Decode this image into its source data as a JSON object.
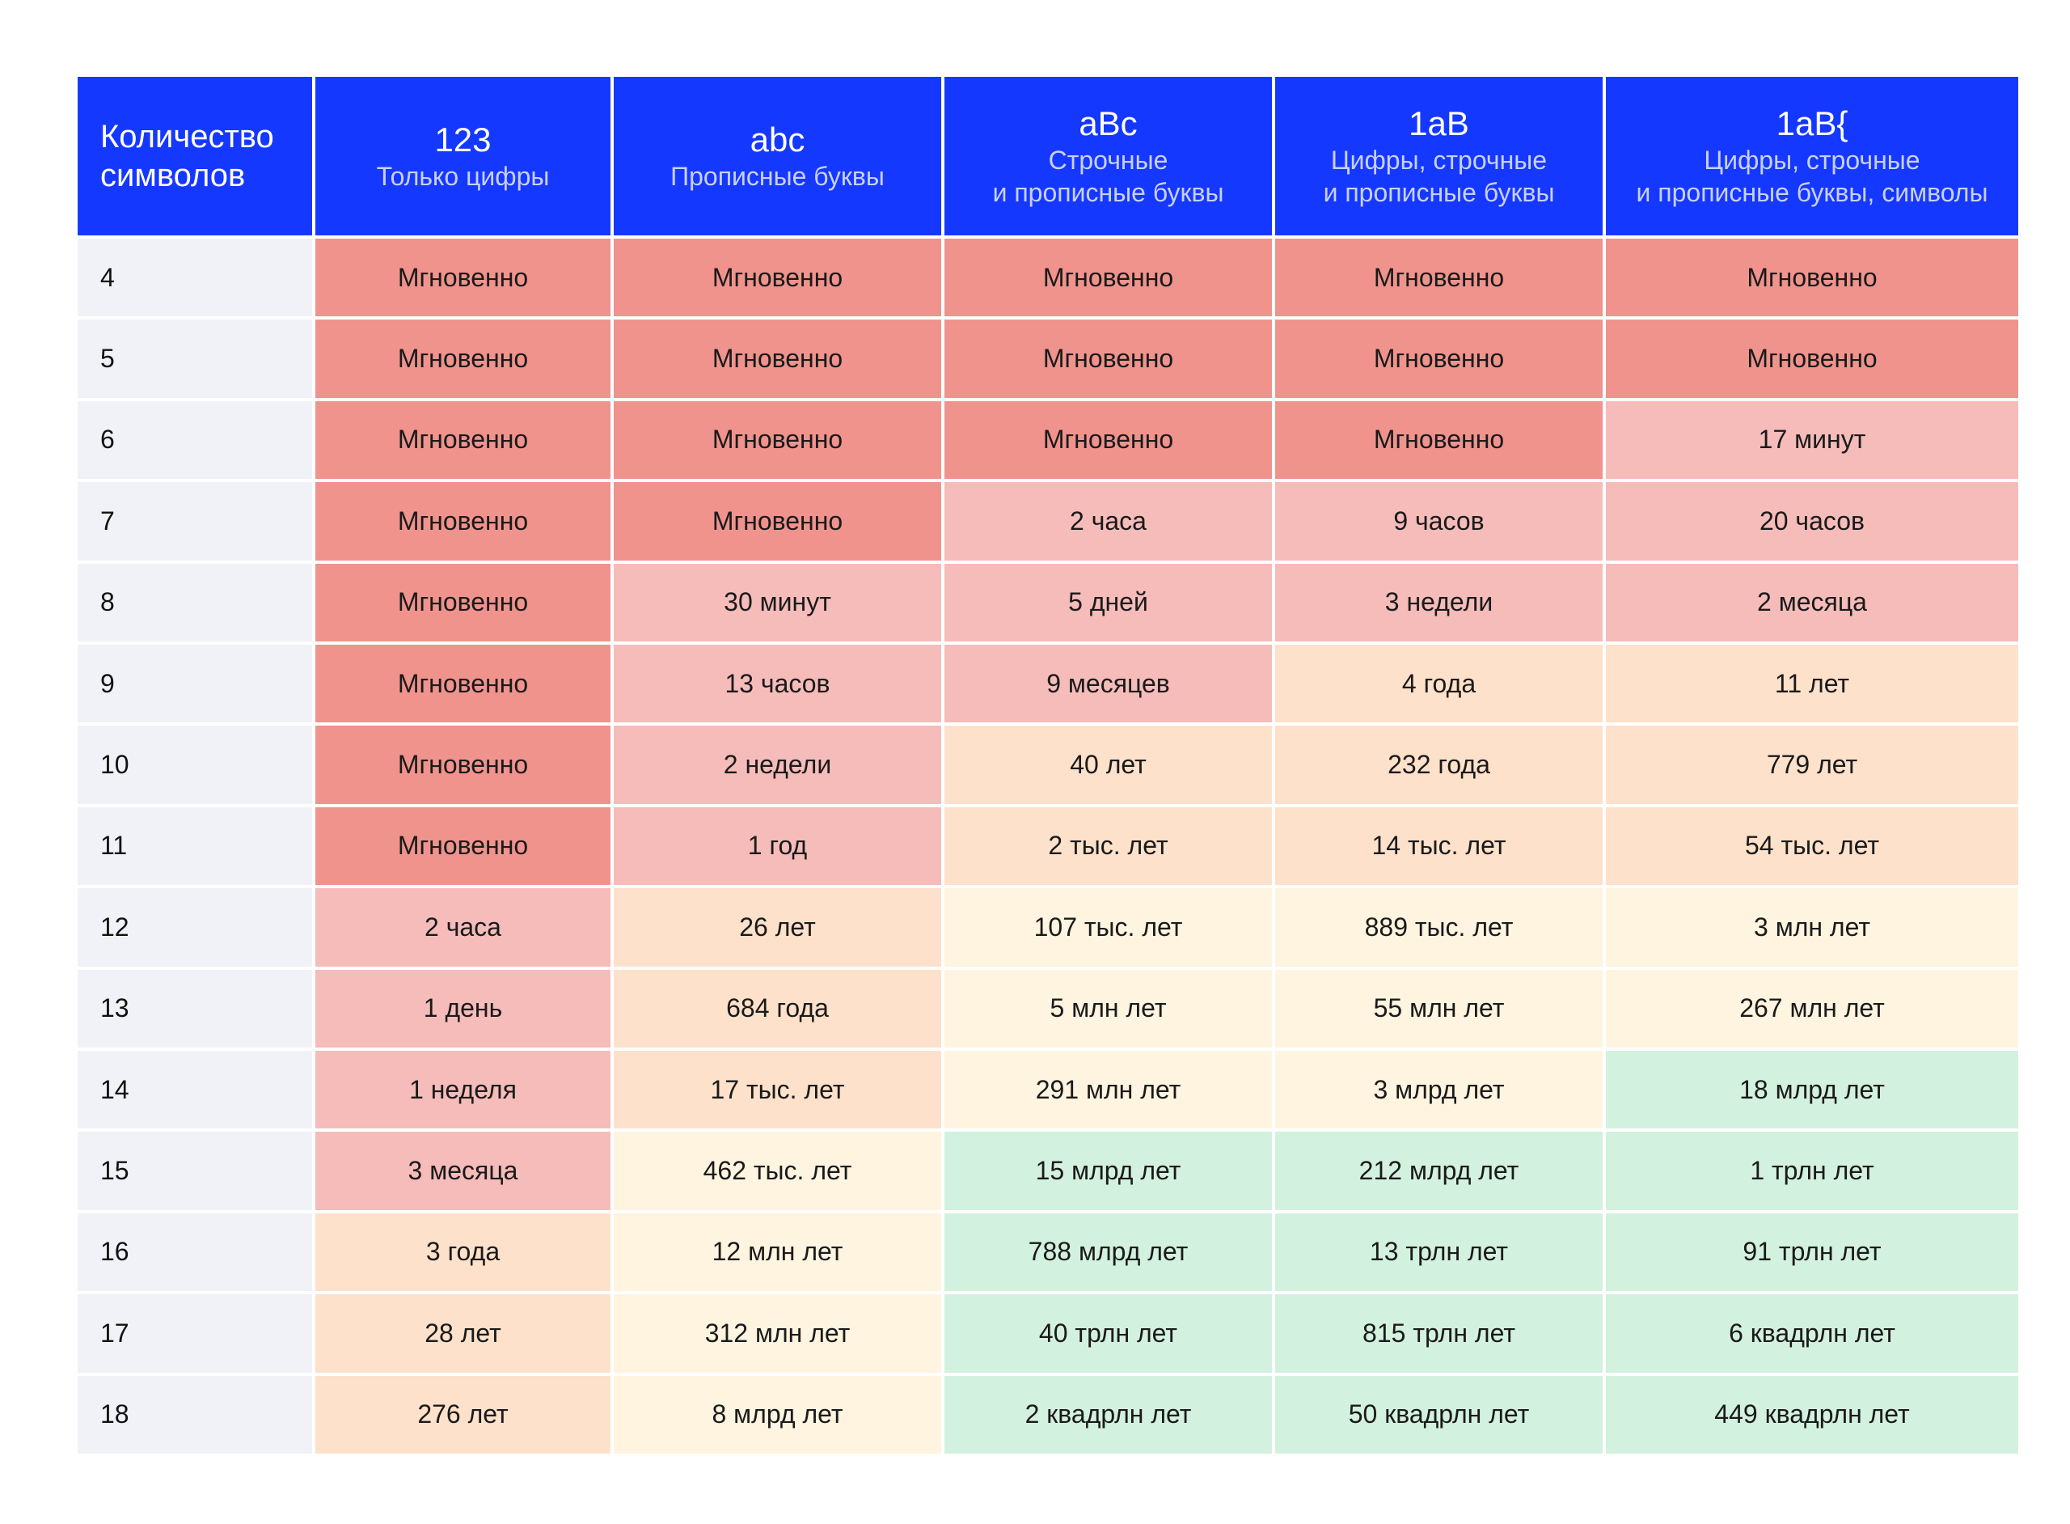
{
  "colors": {
    "header_bg": "#1538ff",
    "header_text": "#ffffff",
    "header_desc": "#c9d0ff",
    "row_header_bg": "#f1f2f7",
    "level_0_instant": "#f0938d",
    "level_1": "#f5bcba",
    "level_2": "#fde1ca",
    "level_3": "#fef4e0",
    "level_4": "#d3f1df"
  },
  "chart_data": {
    "type": "table",
    "corner_label": "Количество\nсимволов",
    "columns": [
      {
        "symbol": "123",
        "description": "Только цифры"
      },
      {
        "symbol": "abc",
        "description": "Прописные буквы"
      },
      {
        "symbol": "aBc",
        "description": "Строчные\nи прописные буквы"
      },
      {
        "symbol": "1aB",
        "description": "Цифры, строчные\nи прописные буквы"
      },
      {
        "symbol": "1aB{",
        "description": "Цифры, строчные\nи прописные буквы, символы"
      }
    ],
    "rows": [
      {
        "length": "4",
        "cells": [
          "Мгновенно",
          "Мгновенно",
          "Мгновенно",
          "Мгновенно",
          "Мгновенно"
        ],
        "levels": [
          0,
          0,
          0,
          0,
          0
        ]
      },
      {
        "length": "5",
        "cells": [
          "Мгновенно",
          "Мгновенно",
          "Мгновенно",
          "Мгновенно",
          "Мгновенно"
        ],
        "levels": [
          0,
          0,
          0,
          0,
          0
        ]
      },
      {
        "length": "6",
        "cells": [
          "Мгновенно",
          "Мгновенно",
          "Мгновенно",
          "Мгновенно",
          "17 минут"
        ],
        "levels": [
          0,
          0,
          0,
          0,
          1
        ]
      },
      {
        "length": "7",
        "cells": [
          "Мгновенно",
          "Мгновенно",
          "2 часа",
          "9 часов",
          "20 часов"
        ],
        "levels": [
          0,
          0,
          1,
          1,
          1
        ]
      },
      {
        "length": "8",
        "cells": [
          "Мгновенно",
          "30 минут",
          "5 дней",
          "3 недели",
          "2 месяца"
        ],
        "levels": [
          0,
          1,
          1,
          1,
          1
        ]
      },
      {
        "length": "9",
        "cells": [
          "Мгновенно",
          "13 часов",
          "9 месяцев",
          "4 года",
          "11 лет"
        ],
        "levels": [
          0,
          1,
          1,
          2,
          2
        ]
      },
      {
        "length": "10",
        "cells": [
          "Мгновенно",
          "2 недели",
          "40 лет",
          "232 года",
          "779 лет"
        ],
        "levels": [
          0,
          1,
          2,
          2,
          2
        ]
      },
      {
        "length": "11",
        "cells": [
          "Мгновенно",
          "1 год",
          "2 тыс. лет",
          "14 тыс. лет",
          "54 тыс. лет"
        ],
        "levels": [
          0,
          1,
          2,
          2,
          2
        ]
      },
      {
        "length": "12",
        "cells": [
          "2 часа",
          "26 лет",
          "107 тыс. лет",
          "889 тыс. лет",
          "3 млн лет"
        ],
        "levels": [
          1,
          2,
          3,
          3,
          3
        ]
      },
      {
        "length": "13",
        "cells": [
          "1 день",
          "684 года",
          "5 млн лет",
          "55 млн лет",
          "267 млн лет"
        ],
        "levels": [
          1,
          2,
          3,
          3,
          3
        ]
      },
      {
        "length": "14",
        "cells": [
          "1 неделя",
          "17 тыс. лет",
          "291 млн лет",
          "3 млрд лет",
          "18 млрд лет"
        ],
        "levels": [
          1,
          2,
          3,
          3,
          4
        ]
      },
      {
        "length": "15",
        "cells": [
          "3 месяца",
          "462 тыс. лет",
          "15 млрд лет",
          "212 млрд лет",
          "1 трлн лет"
        ],
        "levels": [
          1,
          3,
          4,
          4,
          4
        ]
      },
      {
        "length": "16",
        "cells": [
          "3 года",
          "12 млн лет",
          "788 млрд лет",
          "13 трлн лет",
          "91 трлн лет"
        ],
        "levels": [
          2,
          3,
          4,
          4,
          4
        ]
      },
      {
        "length": "17",
        "cells": [
          "28 лет",
          "312 млн лет",
          "40 трлн лет",
          "815 трлн лет",
          "6 квадрлн лет"
        ],
        "levels": [
          2,
          3,
          4,
          4,
          4
        ]
      },
      {
        "length": "18",
        "cells": [
          "276 лет",
          "8 млрд лет",
          "2 квадрлн лет",
          "50 квадрлн лет",
          "449 квадрлн лет"
        ],
        "levels": [
          2,
          3,
          4,
          4,
          4
        ]
      }
    ]
  }
}
